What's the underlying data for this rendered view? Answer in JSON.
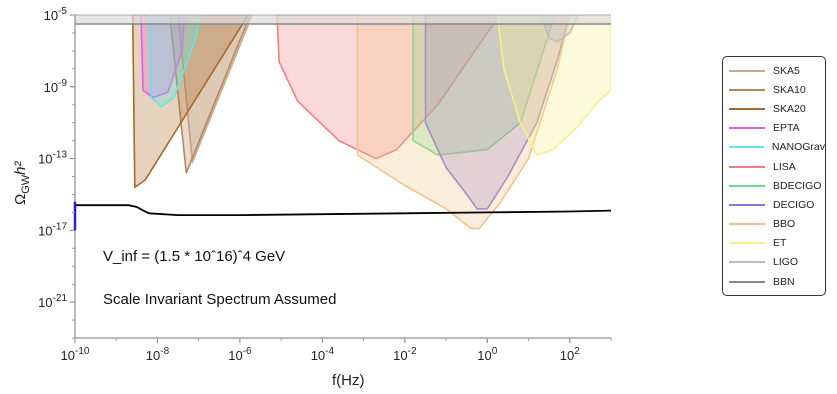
{
  "chart_data": {
    "type": "area",
    "title": "",
    "xlabel": "f(Hz)",
    "ylabel": "Ω_GW h²",
    "xscale": "log",
    "yscale": "log",
    "xlim_log10": [
      -10,
      3
    ],
    "ylim_log10": [
      -23,
      -5
    ],
    "x_ticks": [
      {
        "log10": -10,
        "label": "10^-10"
      },
      {
        "log10": -8,
        "label": "10^-8"
      },
      {
        "log10": -6,
        "label": "10^-6"
      },
      {
        "log10": -4,
        "label": "10^-4"
      },
      {
        "log10": -2,
        "label": "10^-2"
      },
      {
        "log10": 0,
        "label": "10^0"
      },
      {
        "log10": 2,
        "label": "10^2"
      }
    ],
    "y_ticks": [
      {
        "log10": -5,
        "label": "10^-5"
      },
      {
        "log10": -9,
        "label": "10^-9"
      },
      {
        "log10": -13,
        "label": "10^-13"
      },
      {
        "log10": -17,
        "label": "10^-17"
      },
      {
        "log10": -21,
        "label": "10^-21"
      }
    ],
    "annotations": [
      "V_inf = (1.5 * 10ˆ16)ˆ4 GeV",
      "Scale Invariant Spectrum Assumed"
    ],
    "legend_position": "right",
    "regions": [
      {
        "name": "SKA5",
        "color": "#c8a98a",
        "points": [
          [
            -7.5,
            -5
          ],
          [
            -7.15,
            -13.2
          ],
          [
            -5.7,
            -5
          ]
        ]
      },
      {
        "name": "SKA10",
        "color": "#b58860",
        "points": [
          [
            -7.7,
            -5
          ],
          [
            -7.3,
            -13.8
          ],
          [
            -5.75,
            -5
          ]
        ]
      },
      {
        "name": "SKA20",
        "color": "#a86a2c",
        "points": [
          [
            -8.6,
            -5
          ],
          [
            -8.55,
            -14.6
          ],
          [
            -8.3,
            -14.2
          ],
          [
            -5.8,
            -5
          ]
        ]
      },
      {
        "name": "EPTA",
        "color": "#e060e0",
        "points": [
          [
            -8.4,
            -5
          ],
          [
            -8.35,
            -9.2
          ],
          [
            -8.1,
            -9.6
          ],
          [
            -7.75,
            -9.3
          ],
          [
            -7.4,
            -7.0
          ],
          [
            -7.35,
            -5
          ]
        ]
      },
      {
        "name": "NANOGrav",
        "color": "#5ee8e8",
        "points": [
          [
            -8.2,
            -5
          ],
          [
            -8.15,
            -9.6
          ],
          [
            -7.9,
            -10.1
          ],
          [
            -7.6,
            -9.6
          ],
          [
            -7.1,
            -6.5
          ],
          [
            -6.95,
            -5
          ]
        ]
      },
      {
        "name": "LISA",
        "color": "#f08080",
        "points": [
          [
            -5.1,
            -5
          ],
          [
            -5.05,
            -7.6
          ],
          [
            -4.6,
            -9.8
          ],
          [
            -3.6,
            -12.0
          ],
          [
            -2.7,
            -13.0
          ],
          [
            -2.2,
            -12.5
          ],
          [
            -1.2,
            -10.0
          ],
          [
            0.0,
            -6.0
          ],
          [
            0.3,
            -5
          ]
        ]
      },
      {
        "name": "BDECIGO",
        "color": "#66dd88",
        "points": [
          [
            -1.8,
            -5
          ],
          [
            -1.8,
            -12.0
          ],
          [
            -1.2,
            -12.8
          ],
          [
            0.0,
            -12.5
          ],
          [
            0.8,
            -11.0
          ],
          [
            1.5,
            -6.0
          ],
          [
            1.6,
            -5
          ]
        ]
      },
      {
        "name": "DECIGO",
        "color": "#8877dd",
        "points": [
          [
            -1.5,
            -5
          ],
          [
            -1.5,
            -11.0
          ],
          [
            -1.0,
            -13.5
          ],
          [
            -0.5,
            -15.0
          ],
          [
            -0.25,
            -15.8
          ],
          [
            0.0,
            -15.8
          ],
          [
            0.5,
            -14.0
          ],
          [
            1.2,
            -11.0
          ],
          [
            1.7,
            -7.5
          ],
          [
            2.0,
            -5.0
          ]
        ]
      },
      {
        "name": "BBO",
        "color": "#f2c48a",
        "points": [
          [
            -3.15,
            -5
          ],
          [
            -3.15,
            -12.8
          ],
          [
            -2.0,
            -14.5
          ],
          [
            -1.0,
            -15.8
          ],
          [
            -0.4,
            -16.9
          ],
          [
            -0.2,
            -16.9
          ],
          [
            0.3,
            -15.5
          ],
          [
            1.0,
            -13.0
          ],
          [
            1.7,
            -8.0
          ],
          [
            2.0,
            -5.0
          ]
        ]
      },
      {
        "name": "ET",
        "color": "#f5f08a",
        "points": [
          [
            0.25,
            -5
          ],
          [
            0.4,
            -8.0
          ],
          [
            0.8,
            -11.0
          ],
          [
            1.2,
            -12.8
          ],
          [
            1.6,
            -12.5
          ],
          [
            2.2,
            -11.2
          ],
          [
            2.7,
            -9.8
          ],
          [
            3.0,
            -9.2
          ],
          [
            3.0,
            -5
          ]
        ]
      },
      {
        "name": "LIGO",
        "color": "#bcbcbc",
        "points": [
          [
            1.3,
            -5
          ],
          [
            1.5,
            -6.3
          ],
          [
            1.7,
            -6.5
          ],
          [
            2.0,
            -6.0
          ],
          [
            2.2,
            -5
          ]
        ]
      }
    ],
    "bbn_band": {
      "name": "BBN",
      "color": "#888888",
      "y_low_log10": -5.5,
      "y_high_log10": -5
    },
    "series": [
      {
        "name": "",
        "color": "#000000",
        "x_log10": [
          -10,
          -8.7,
          -8.5,
          -8.3,
          -8.2,
          -7.5,
          -6,
          -4,
          -2,
          0,
          2,
          3
        ],
        "y_log10": [
          -15.6,
          -15.6,
          -15.7,
          -15.95,
          -16.05,
          -16.15,
          -16.15,
          -16.1,
          -16.05,
          -16.0,
          -15.95,
          -15.9
        ]
      }
    ]
  },
  "legend": {
    "items": [
      {
        "label": "SKA5",
        "color": "#c8a98a"
      },
      {
        "label": "SKA10",
        "color": "#b58860"
      },
      {
        "label": "SKA20",
        "color": "#a86a2c"
      },
      {
        "label": "EPTA",
        "color": "#e060e0"
      },
      {
        "label": "NANOGrav",
        "color": "#5ee8e8"
      },
      {
        "label": "LISA",
        "color": "#f08080"
      },
      {
        "label": "BDECIGO",
        "color": "#66dd88"
      },
      {
        "label": "DECIGO",
        "color": "#8877dd"
      },
      {
        "label": "BBO",
        "color": "#f2c48a"
      },
      {
        "label": "ET",
        "color": "#f5f08a"
      },
      {
        "label": "LIGO",
        "color": "#bcbcbc"
      },
      {
        "label": "BBN",
        "color": "#888888"
      }
    ]
  }
}
